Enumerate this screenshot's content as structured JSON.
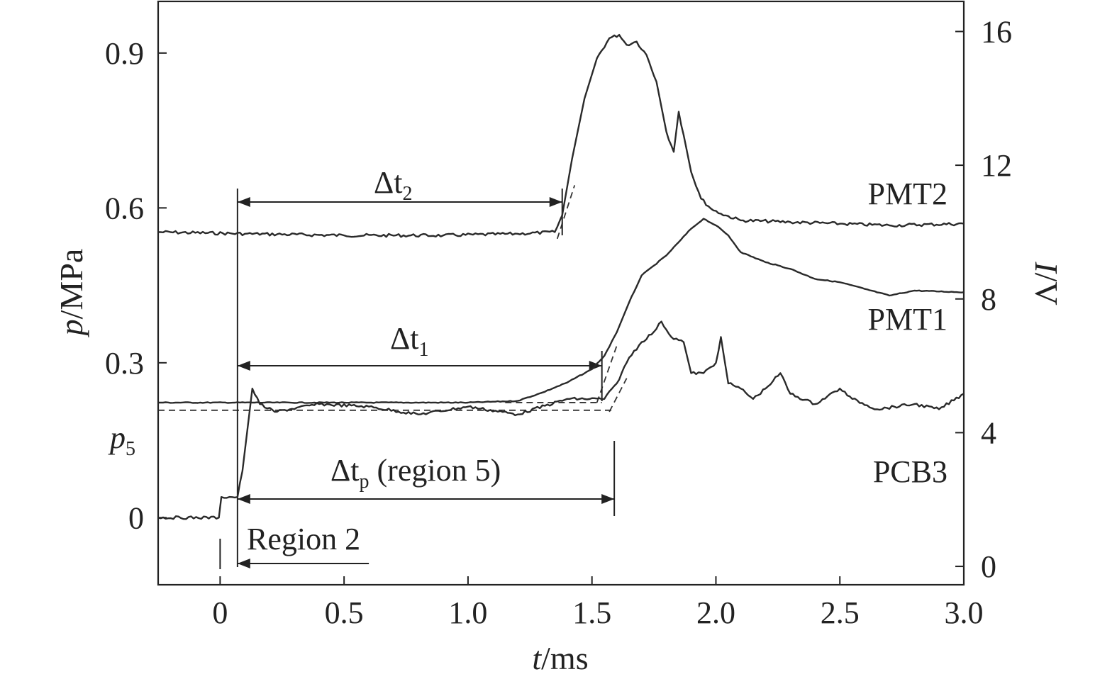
{
  "chart_data": {
    "type": "line",
    "xlabel": {
      "var": "t",
      "unit": "/ms"
    },
    "ylabel_left": {
      "var": "p",
      "unit": "/MPa"
    },
    "ylabel_right": {
      "var": "I",
      "unit": "/V"
    },
    "xlim": [
      -0.25,
      3.0
    ],
    "ylim_left": [
      -0.13,
      1.0
    ],
    "ylim_right": [
      -0.55,
      16.9
    ],
    "x_ticks": [
      0,
      0.5,
      1.0,
      1.5,
      2.0,
      2.5,
      3.0
    ],
    "x_tick_labels": [
      "0",
      "0.5",
      "1.0",
      "1.5",
      "2.0",
      "2.5",
      "3.0"
    ],
    "y_left_ticks": [
      0,
      0.3,
      0.6,
      0.9
    ],
    "y_left_tick_labels": [
      "0",
      "0.3",
      "0.6",
      "0.9"
    ],
    "y_right_ticks": [
      0,
      4,
      8,
      12,
      16
    ],
    "y_right_tick_labels": [
      "0",
      "4",
      "8",
      "12",
      "16"
    ],
    "p5_label": {
      "base": "p",
      "sub": "5",
      "value": 0.208
    },
    "series": [
      {
        "name": "PMT2",
        "axis": "right",
        "x": [
          -0.25,
          0.1,
          0.5,
          0.9,
          1.2,
          1.35,
          1.38,
          1.42,
          1.47,
          1.52,
          1.57,
          1.61,
          1.64,
          1.68,
          1.72,
          1.76,
          1.8,
          1.83,
          1.85,
          1.87,
          1.9,
          1.94,
          1.98,
          2.02,
          2.1,
          2.3,
          2.5,
          2.7,
          3.0
        ],
        "y": [
          10.0,
          9.95,
          9.9,
          9.9,
          9.95,
          10.0,
          10.5,
          12.2,
          14.0,
          15.2,
          15.8,
          15.9,
          15.6,
          15.7,
          15.3,
          14.5,
          13.0,
          12.4,
          13.6,
          12.9,
          11.8,
          11.0,
          10.7,
          10.55,
          10.35,
          10.3,
          10.25,
          10.2,
          10.25
        ]
      },
      {
        "name": "PMT1",
        "axis": "right",
        "x": [
          -0.25,
          0.5,
          1.0,
          1.2,
          1.3,
          1.4,
          1.5,
          1.55,
          1.6,
          1.65,
          1.7,
          1.75,
          1.8,
          1.85,
          1.9,
          1.95,
          2.0,
          2.05,
          2.1,
          2.2,
          2.3,
          2.4,
          2.5,
          2.6,
          2.7,
          2.8,
          3.0
        ],
        "y": [
          4.9,
          4.9,
          4.9,
          4.95,
          5.2,
          5.5,
          5.9,
          6.3,
          7.0,
          7.9,
          8.7,
          9.0,
          9.3,
          9.7,
          10.1,
          10.4,
          10.2,
          9.9,
          9.4,
          9.1,
          8.9,
          8.6,
          8.5,
          8.3,
          8.1,
          8.25,
          8.2
        ]
      },
      {
        "name": "PCB3",
        "axis": "left",
        "x": [
          -0.25,
          -0.005,
          0.005,
          0.07,
          0.09,
          0.13,
          0.16,
          0.22,
          0.4,
          0.6,
          0.8,
          1.0,
          1.2,
          1.4,
          1.55,
          1.6,
          1.65,
          1.7,
          1.75,
          1.78,
          1.82,
          1.87,
          1.9,
          1.95,
          2.0,
          2.02,
          2.05,
          2.1,
          2.15,
          2.2,
          2.26,
          2.3,
          2.4,
          2.5,
          2.55,
          2.65,
          2.8,
          2.9,
          3.0
        ],
        "y": [
          0.0,
          0.0,
          0.04,
          0.04,
          0.09,
          0.25,
          0.22,
          0.205,
          0.22,
          0.215,
          0.2,
          0.215,
          0.2,
          0.23,
          0.23,
          0.26,
          0.31,
          0.34,
          0.36,
          0.38,
          0.35,
          0.34,
          0.28,
          0.28,
          0.3,
          0.35,
          0.26,
          0.25,
          0.23,
          0.25,
          0.28,
          0.24,
          0.22,
          0.25,
          0.23,
          0.21,
          0.22,
          0.21,
          0.24
        ]
      }
    ],
    "series_labels": [
      {
        "name": "PMT2",
        "text": "PMT2"
      },
      {
        "name": "PMT1",
        "text": "PMT1"
      },
      {
        "name": "PCB3",
        "text": "PCB3"
      }
    ],
    "annotations": {
      "dt2": {
        "base": "Δt",
        "sub": "2",
        "from": 0.07,
        "to": 1.38
      },
      "dt1": {
        "base": "Δt",
        "sub": "1",
        "from": 0.07,
        "to": 1.54
      },
      "dtp": {
        "base": "Δt",
        "sub": "p",
        "suffix": " (region 5)",
        "from": 0.07,
        "to": 1.59
      },
      "region2": {
        "text": "Region 2",
        "from": 0.07,
        "to": 0.6
      }
    },
    "grid": false,
    "legend": "none"
  }
}
